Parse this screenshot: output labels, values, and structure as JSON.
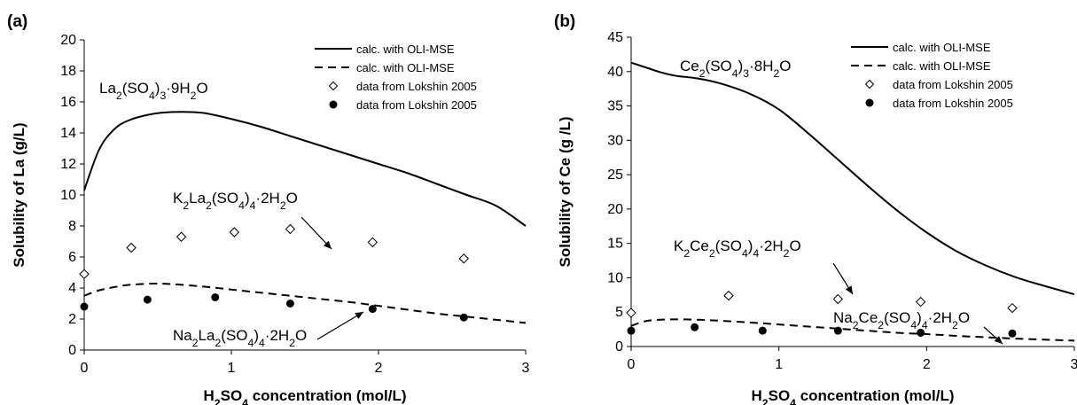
{
  "chart_data": [
    {
      "panel": "(a)",
      "type": "line",
      "xlabel_parts": [
        "H",
        "2",
        "SO",
        "4",
        " concentration (mol/L)"
      ],
      "ylabel": "Solubility of La (g/L)",
      "xlim": [
        0,
        3
      ],
      "ylim": [
        0,
        20
      ],
      "xticks": [
        "0",
        "1",
        "2",
        "3"
      ],
      "yticks": [
        "0",
        "2",
        "4",
        "6",
        "8",
        "10",
        "12",
        "14",
        "16",
        "18",
        "20"
      ],
      "grid": false,
      "legend_position": "top-right",
      "series": [
        {
          "name": "calc. with OLI-MSE",
          "style": "solid",
          "x": [
            0,
            0.1,
            0.2,
            0.3,
            0.45,
            0.6,
            0.8,
            1.0,
            1.2,
            1.4,
            1.6,
            1.8,
            2.0,
            2.2,
            2.4,
            2.6,
            2.8,
            3.0
          ],
          "y": [
            10.3,
            12.9,
            14.2,
            14.8,
            15.2,
            15.35,
            15.3,
            14.9,
            14.4,
            13.8,
            13.2,
            12.6,
            12.0,
            11.4,
            10.7,
            10.0,
            9.3,
            8.0
          ]
        },
        {
          "name": "calc. with OLI-MSE",
          "style": "dashed",
          "x": [
            0,
            0.1,
            0.2,
            0.3,
            0.45,
            0.6,
            0.8,
            1.0,
            1.2,
            1.4,
            1.6,
            1.8,
            2.0,
            2.2,
            2.4,
            2.6,
            2.8,
            3.0
          ],
          "y": [
            3.5,
            3.85,
            4.05,
            4.2,
            4.28,
            4.25,
            4.1,
            3.9,
            3.7,
            3.5,
            3.3,
            3.1,
            2.85,
            2.6,
            2.35,
            2.15,
            1.95,
            1.75
          ]
        },
        {
          "name": "data from Lokshin 2005",
          "style": "open-diamond",
          "x": [
            0,
            0.32,
            0.66,
            1.02,
            1.4,
            1.96,
            2.58
          ],
          "y": [
            4.9,
            6.6,
            7.3,
            7.6,
            7.8,
            6.95,
            5.9
          ]
        },
        {
          "name": "data from Lokshin 2005",
          "style": "filled-circle",
          "x": [
            0,
            0.43,
            0.89,
            1.4,
            1.96,
            2.58
          ],
          "y": [
            2.8,
            3.25,
            3.4,
            3.0,
            2.65,
            2.1
          ]
        }
      ],
      "annotations": [
        {
          "parts": [
            "La",
            "2",
            "(SO",
            "4",
            ")",
            "3",
            "·9H",
            "2",
            "O"
          ]
        },
        {
          "parts": [
            "K",
            "2",
            "La",
            "2",
            "(SO",
            "4",
            ")",
            "4",
            "·2H",
            "2",
            "O"
          ]
        },
        {
          "parts": [
            "Na",
            "2",
            "La",
            "2",
            "(SO",
            "4",
            ")",
            "4",
            "·2H",
            "2",
            "O"
          ]
        }
      ]
    },
    {
      "panel": "(b)",
      "type": "line",
      "xlabel_parts": [
        "H",
        "2",
        "SO",
        "4",
        " concentration (mol/L)"
      ],
      "ylabel": "Solubility of Ce (g /L)",
      "xlim": [
        0,
        3
      ],
      "ylim": [
        0,
        45
      ],
      "xticks": [
        "0",
        "1",
        "2",
        "3"
      ],
      "yticks": [
        "0",
        "5",
        "10",
        "15",
        "20",
        "25",
        "30",
        "35",
        "40",
        "45"
      ],
      "grid": false,
      "legend_position": "top-right",
      "series": [
        {
          "name": "calc. with OLI-MSE",
          "style": "solid",
          "x": [
            0,
            0.1,
            0.2,
            0.3,
            0.45,
            0.6,
            0.8,
            1.0,
            1.2,
            1.4,
            1.6,
            1.8,
            2.0,
            2.2,
            2.4,
            2.6,
            2.8,
            3.0
          ],
          "y": [
            41.3,
            40.6,
            39.9,
            39.4,
            39.0,
            38.3,
            36.8,
            34.5,
            31.0,
            27.2,
            23.4,
            19.8,
            16.6,
            13.9,
            11.8,
            10.1,
            8.8,
            7.6
          ]
        },
        {
          "name": "calc. with OLI-MSE",
          "style": "dashed",
          "x": [
            0,
            0.1,
            0.2,
            0.3,
            0.45,
            0.6,
            0.8,
            1.0,
            1.2,
            1.4,
            1.6,
            1.8,
            2.0,
            2.2,
            2.4,
            2.6,
            2.8,
            3.0
          ],
          "y": [
            3.0,
            3.7,
            3.9,
            3.95,
            3.9,
            3.75,
            3.5,
            3.2,
            2.9,
            2.6,
            2.3,
            2.0,
            1.8,
            1.55,
            1.35,
            1.15,
            1.0,
            0.85
          ]
        },
        {
          "name": "data from Lokshin 2005",
          "style": "open-diamond",
          "x": [
            0,
            0.66,
            1.4,
            1.96,
            2.58
          ],
          "y": [
            4.9,
            7.4,
            6.9,
            6.5,
            5.6
          ]
        },
        {
          "name": "data from Lokshin 2005",
          "style": "filled-circle",
          "x": [
            0,
            0.43,
            0.89,
            1.4,
            1.96,
            2.58
          ],
          "y": [
            2.3,
            2.8,
            2.3,
            2.3,
            2.0,
            1.9
          ]
        }
      ],
      "annotations": [
        {
          "parts": [
            "Ce",
            "2",
            "(SO",
            "4",
            ")",
            "3",
            "·8H",
            "2",
            "O"
          ]
        },
        {
          "parts": [
            "K",
            "2",
            "Ce",
            "2",
            "(SO",
            "4",
            ")",
            "4",
            "·2H",
            "2",
            "O"
          ]
        },
        {
          "parts": [
            "Na",
            "2",
            "Ce",
            "2",
            "(SO",
            "4",
            ")",
            "4",
            "·2H",
            "2",
            "O"
          ]
        }
      ]
    }
  ]
}
